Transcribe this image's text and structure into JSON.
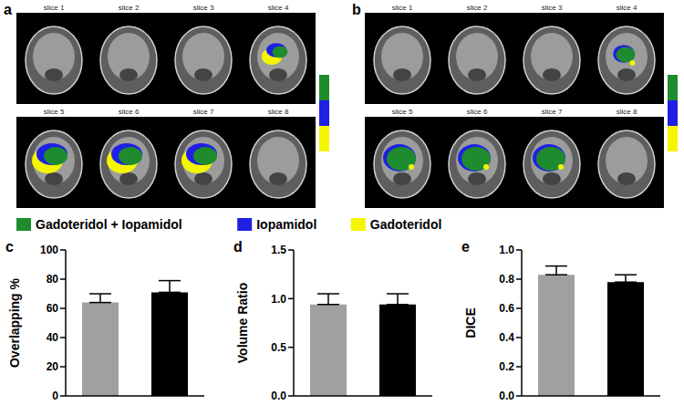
{
  "images": [
    {
      "panel": "a",
      "slices": [
        "slice 1",
        "slice 2",
        "slice 3",
        "slice 4",
        "slice 5",
        "slice 6",
        "slice 7",
        "slice 8"
      ]
    },
    {
      "panel": "b",
      "slices": [
        "slice 1",
        "slice 2",
        "slice 3",
        "slice 4",
        "slice 5",
        "slice 6",
        "slice 7",
        "slice 8"
      ]
    }
  ],
  "legend_items": [
    {
      "name": "Gadoteridol + Iopamidol",
      "color": "#1e8c2e"
    },
    {
      "name": "Iopamidol",
      "color": "#1f1fe6"
    },
    {
      "name": "Gadoteridol",
      "color": "#f5f500"
    }
  ],
  "chart_data": [
    {
      "type": "bar",
      "panel": "c",
      "y_label": "Overlapping %",
      "categories": [
        null,
        null
      ],
      "values": [
        64,
        71
      ],
      "error": [
        6,
        8
      ],
      "colors": [
        "#a0a0a0",
        "#000000"
      ],
      "ylim": [
        0,
        100
      ],
      "yticks": [
        0,
        20,
        40,
        60,
        80,
        100
      ]
    },
    {
      "type": "bar",
      "panel": "d",
      "y_label": "Volume Ratio",
      "categories": [
        null,
        null
      ],
      "values": [
        0.94,
        0.94
      ],
      "error": [
        0.11,
        0.11
      ],
      "colors": [
        "#a0a0a0",
        "#000000"
      ],
      "ylim": [
        0,
        1.5
      ],
      "yticks": [
        {
          "value": 0,
          "label": "0.0"
        },
        0.5,
        {
          "value": 1,
          "label": "1.0"
        },
        1.5
      ]
    },
    {
      "type": "bar",
      "panel": "e",
      "y_label": "DICE",
      "categories": [
        null,
        null
      ],
      "values": [
        0.83,
        0.78
      ],
      "error": [
        0.06,
        0.05
      ],
      "colors": [
        "#a0a0a0",
        "#000000"
      ],
      "ylim": [
        0,
        1
      ],
      "yticks": [
        {
          "value": 0,
          "label": "0.0"
        },
        0.2,
        0.4,
        0.6,
        0.8,
        {
          "value": 1,
          "label": "1.0"
        }
      ]
    }
  ]
}
